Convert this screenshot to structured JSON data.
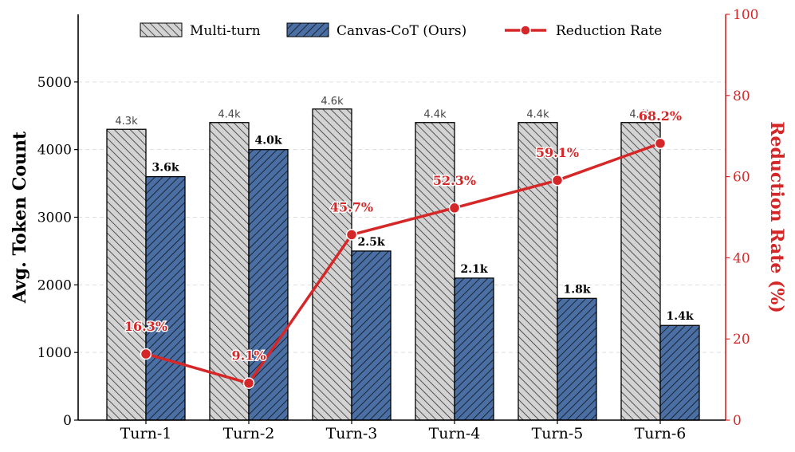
{
  "chart_data": {
    "type": "bar",
    "categories": [
      "Turn-1",
      "Turn-2",
      "Turn-3",
      "Turn-4",
      "Turn-5",
      "Turn-6"
    ],
    "series": [
      {
        "name": "Multi-turn",
        "axis": "left",
        "values": [
          4300,
          4400,
          4600,
          4400,
          4400,
          4400
        ],
        "labels": [
          "4.3k",
          "4.4k",
          "4.6k",
          "4.4k",
          "4.4k",
          "4.4k"
        ],
        "color": "#d3d3d3",
        "hatch": "diagonal"
      },
      {
        "name": "Canvas-CoT (Ours)",
        "axis": "left",
        "values": [
          3600,
          4000,
          2500,
          2100,
          1800,
          1400
        ],
        "labels": [
          "3.6k",
          "4.0k",
          "2.5k",
          "2.1k",
          "1.8k",
          "1.4k"
        ],
        "color": "#4a6fa5",
        "hatch": "diagonal"
      },
      {
        "name": "Reduction Rate",
        "type": "line",
        "axis": "right",
        "values": [
          16.3,
          9.1,
          45.7,
          52.3,
          59.1,
          68.2
        ],
        "labels": [
          "16.3%",
          "9.1%",
          "45.7%",
          "52.3%",
          "59.1%",
          "68.2%"
        ],
        "color": "#d62728"
      }
    ],
    "ylabel": "Avg. Token Count",
    "ylabel_right": "Reduction Rate (%)",
    "ylim": [
      0,
      6000
    ],
    "ylim_right": [
      0,
      100
    ],
    "yticks": [
      0,
      1000,
      2000,
      3000,
      4000,
      5000
    ],
    "yticks_right": [
      0,
      20,
      40,
      60,
      80,
      100
    ],
    "grid": "horizontal dashed",
    "legend_position": "top"
  }
}
